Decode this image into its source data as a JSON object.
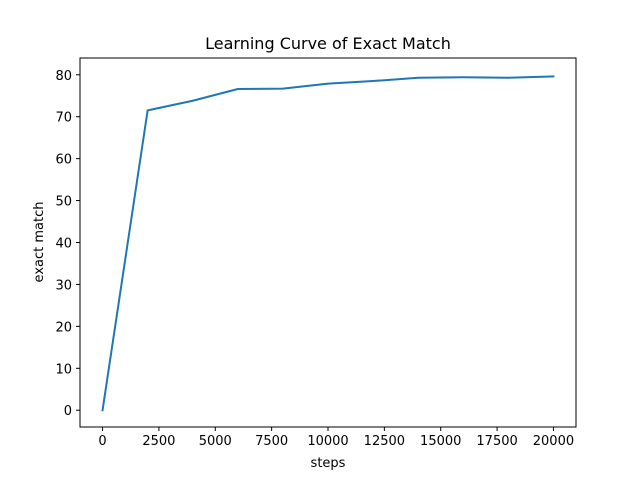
{
  "chart_data": {
    "type": "line",
    "title": "Learning Curve of Exact Match",
    "xlabel": "steps",
    "ylabel": "exact match",
    "xlim": [
      -1000,
      21000
    ],
    "ylim": [
      -4,
      84
    ],
    "xticks": [
      0,
      2500,
      5000,
      7500,
      10000,
      12500,
      15000,
      17500,
      20000
    ],
    "yticks": [
      0,
      10,
      20,
      30,
      40,
      50,
      60,
      70,
      80
    ],
    "grid": false,
    "series": [
      {
        "color": "#1f77b4",
        "x": [
          0,
          2000,
          4000,
          6000,
          8000,
          10000,
          12000,
          14000,
          16000,
          18000,
          20000
        ],
        "y": [
          0,
          71.5,
          73.8,
          76.6,
          76.7,
          77.9,
          78.5,
          79.3,
          79.4,
          79.3,
          79.6
        ]
      }
    ]
  }
}
